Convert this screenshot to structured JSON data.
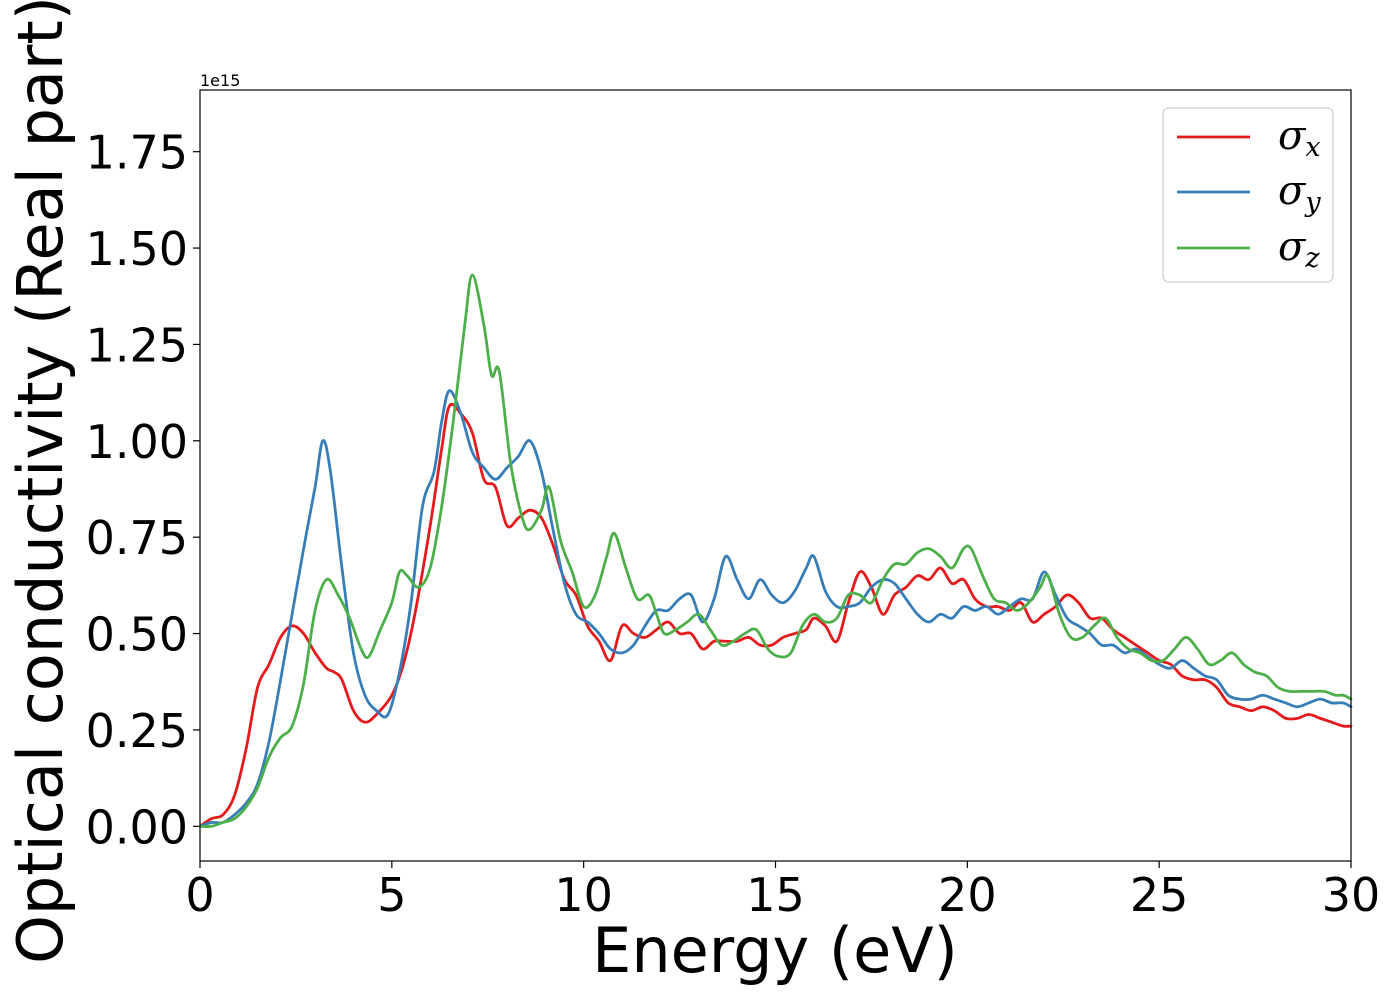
{
  "chart_data": {
    "type": "line",
    "xlabel": "Energy (eV)",
    "ylabel": "Optical conductivity (Real part)",
    "y_offset_label": "1e15",
    "xlim": [
      0,
      30
    ],
    "ylim": [
      -0.09,
      1.91
    ],
    "xticks": [
      0,
      5,
      10,
      15,
      20,
      25,
      30
    ],
    "xtick_labels": [
      "0",
      "5",
      "10",
      "15",
      "20",
      "25",
      "30"
    ],
    "yticks": [
      0.0,
      0.25,
      0.5,
      0.75,
      1.0,
      1.25,
      1.5,
      1.75
    ],
    "ytick_labels": [
      "0.00",
      "0.25",
      "0.50",
      "0.75",
      "1.00",
      "1.25",
      "1.50",
      "1.75"
    ],
    "grid": false,
    "legend_position": "top-right",
    "series": [
      {
        "name": "σx",
        "name_base": "σ",
        "name_sub": "x",
        "color": "#e41a1c",
        "points": [
          [
            0,
            0
          ],
          [
            0.3,
            0.02
          ],
          [
            0.6,
            0.03
          ],
          [
            0.9,
            0.08
          ],
          [
            1.2,
            0.2
          ],
          [
            1.5,
            0.36
          ],
          [
            1.8,
            0.42
          ],
          [
            2.1,
            0.49
          ],
          [
            2.4,
            0.52
          ],
          [
            2.7,
            0.5
          ],
          [
            3.0,
            0.45
          ],
          [
            3.3,
            0.41
          ],
          [
            3.5,
            0.4
          ],
          [
            3.7,
            0.38
          ],
          [
            4.0,
            0.3
          ],
          [
            4.3,
            0.27
          ],
          [
            4.6,
            0.29
          ],
          [
            5.0,
            0.34
          ],
          [
            5.3,
            0.42
          ],
          [
            5.6,
            0.55
          ],
          [
            6.0,
            0.78
          ],
          [
            6.3,
            0.98
          ],
          [
            6.5,
            1.09
          ],
          [
            6.8,
            1.07
          ],
          [
            7.1,
            1.02
          ],
          [
            7.4,
            0.9
          ],
          [
            7.7,
            0.88
          ],
          [
            8.0,
            0.78
          ],
          [
            8.3,
            0.8
          ],
          [
            8.6,
            0.82
          ],
          [
            8.9,
            0.8
          ],
          [
            9.2,
            0.73
          ],
          [
            9.5,
            0.64
          ],
          [
            9.8,
            0.6
          ],
          [
            10.1,
            0.52
          ],
          [
            10.4,
            0.48
          ],
          [
            10.7,
            0.43
          ],
          [
            11.0,
            0.52
          ],
          [
            11.3,
            0.5
          ],
          [
            11.6,
            0.49
          ],
          [
            11.9,
            0.51
          ],
          [
            12.2,
            0.53
          ],
          [
            12.5,
            0.5
          ],
          [
            12.8,
            0.5
          ],
          [
            13.1,
            0.46
          ],
          [
            13.4,
            0.48
          ],
          [
            13.7,
            0.48
          ],
          [
            14.0,
            0.48
          ],
          [
            14.3,
            0.49
          ],
          [
            14.6,
            0.47
          ],
          [
            14.9,
            0.47
          ],
          [
            15.2,
            0.49
          ],
          [
            15.5,
            0.5
          ],
          [
            15.8,
            0.51
          ],
          [
            16.0,
            0.54
          ],
          [
            16.3,
            0.52
          ],
          [
            16.6,
            0.48
          ],
          [
            16.9,
            0.58
          ],
          [
            17.2,
            0.66
          ],
          [
            17.5,
            0.62
          ],
          [
            17.8,
            0.55
          ],
          [
            18.1,
            0.6
          ],
          [
            18.4,
            0.62
          ],
          [
            18.7,
            0.65
          ],
          [
            19.0,
            0.64
          ],
          [
            19.3,
            0.67
          ],
          [
            19.6,
            0.63
          ],
          [
            19.9,
            0.64
          ],
          [
            20.2,
            0.59
          ],
          [
            20.5,
            0.57
          ],
          [
            20.8,
            0.57
          ],
          [
            21.1,
            0.56
          ],
          [
            21.4,
            0.58
          ],
          [
            21.7,
            0.53
          ],
          [
            22.0,
            0.55
          ],
          [
            22.3,
            0.57
          ],
          [
            22.6,
            0.6
          ],
          [
            22.9,
            0.58
          ],
          [
            23.2,
            0.54
          ],
          [
            23.5,
            0.54
          ],
          [
            23.8,
            0.51
          ],
          [
            24.1,
            0.49
          ],
          [
            24.4,
            0.47
          ],
          [
            24.7,
            0.45
          ],
          [
            25.0,
            0.43
          ],
          [
            25.3,
            0.42
          ],
          [
            25.6,
            0.39
          ],
          [
            25.9,
            0.38
          ],
          [
            26.2,
            0.38
          ],
          [
            26.5,
            0.36
          ],
          [
            26.8,
            0.32
          ],
          [
            27.1,
            0.31
          ],
          [
            27.4,
            0.3
          ],
          [
            27.7,
            0.31
          ],
          [
            28.0,
            0.3
          ],
          [
            28.3,
            0.28
          ],
          [
            28.6,
            0.28
          ],
          [
            28.9,
            0.29
          ],
          [
            29.2,
            0.28
          ],
          [
            29.5,
            0.27
          ],
          [
            29.8,
            0.26
          ],
          [
            30.0,
            0.26
          ]
        ]
      },
      {
        "name": "σy",
        "name_base": "σ",
        "name_sub": "y",
        "color": "#377eb8",
        "points": [
          [
            0,
            0
          ],
          [
            0.3,
            0.01
          ],
          [
            0.6,
            0.01
          ],
          [
            0.9,
            0.03
          ],
          [
            1.2,
            0.06
          ],
          [
            1.5,
            0.11
          ],
          [
            1.8,
            0.22
          ],
          [
            2.1,
            0.38
          ],
          [
            2.4,
            0.55
          ],
          [
            2.7,
            0.72
          ],
          [
            3.0,
            0.88
          ],
          [
            3.2,
            1.0
          ],
          [
            3.4,
            0.92
          ],
          [
            3.7,
            0.67
          ],
          [
            4.0,
            0.45
          ],
          [
            4.3,
            0.34
          ],
          [
            4.6,
            0.3
          ],
          [
            4.9,
            0.29
          ],
          [
            5.2,
            0.4
          ],
          [
            5.5,
            0.58
          ],
          [
            5.8,
            0.83
          ],
          [
            6.1,
            0.92
          ],
          [
            6.3,
            1.05
          ],
          [
            6.5,
            1.13
          ],
          [
            6.8,
            1.07
          ],
          [
            7.1,
            0.97
          ],
          [
            7.4,
            0.93
          ],
          [
            7.7,
            0.9
          ],
          [
            8.0,
            0.93
          ],
          [
            8.3,
            0.96
          ],
          [
            8.6,
            1.0
          ],
          [
            8.9,
            0.92
          ],
          [
            9.2,
            0.77
          ],
          [
            9.5,
            0.63
          ],
          [
            9.8,
            0.55
          ],
          [
            10.1,
            0.53
          ],
          [
            10.4,
            0.5
          ],
          [
            10.7,
            0.46
          ],
          [
            11.0,
            0.45
          ],
          [
            11.3,
            0.47
          ],
          [
            11.6,
            0.52
          ],
          [
            11.9,
            0.56
          ],
          [
            12.2,
            0.56
          ],
          [
            12.5,
            0.59
          ],
          [
            12.8,
            0.6
          ],
          [
            13.1,
            0.53
          ],
          [
            13.4,
            0.59
          ],
          [
            13.7,
            0.7
          ],
          [
            14.0,
            0.64
          ],
          [
            14.3,
            0.59
          ],
          [
            14.6,
            0.64
          ],
          [
            14.9,
            0.6
          ],
          [
            15.2,
            0.58
          ],
          [
            15.5,
            0.61
          ],
          [
            15.8,
            0.67
          ],
          [
            16.0,
            0.7
          ],
          [
            16.3,
            0.61
          ],
          [
            16.6,
            0.57
          ],
          [
            16.9,
            0.57
          ],
          [
            17.2,
            0.58
          ],
          [
            17.5,
            0.62
          ],
          [
            17.8,
            0.64
          ],
          [
            18.1,
            0.63
          ],
          [
            18.4,
            0.59
          ],
          [
            18.7,
            0.55
          ],
          [
            19.0,
            0.53
          ],
          [
            19.3,
            0.55
          ],
          [
            19.6,
            0.54
          ],
          [
            19.9,
            0.57
          ],
          [
            20.2,
            0.56
          ],
          [
            20.5,
            0.57
          ],
          [
            20.8,
            0.55
          ],
          [
            21.1,
            0.57
          ],
          [
            21.4,
            0.59
          ],
          [
            21.7,
            0.59
          ],
          [
            22.0,
            0.66
          ],
          [
            22.3,
            0.6
          ],
          [
            22.6,
            0.54
          ],
          [
            22.9,
            0.52
          ],
          [
            23.2,
            0.5
          ],
          [
            23.5,
            0.47
          ],
          [
            23.8,
            0.47
          ],
          [
            24.1,
            0.45
          ],
          [
            24.4,
            0.46
          ],
          [
            24.7,
            0.44
          ],
          [
            25.0,
            0.42
          ],
          [
            25.3,
            0.41
          ],
          [
            25.6,
            0.43
          ],
          [
            25.9,
            0.41
          ],
          [
            26.2,
            0.39
          ],
          [
            26.5,
            0.38
          ],
          [
            26.8,
            0.34
          ],
          [
            27.1,
            0.33
          ],
          [
            27.4,
            0.33
          ],
          [
            27.7,
            0.34
          ],
          [
            28.0,
            0.33
          ],
          [
            28.3,
            0.32
          ],
          [
            28.6,
            0.31
          ],
          [
            28.9,
            0.32
          ],
          [
            29.2,
            0.33
          ],
          [
            29.5,
            0.32
          ],
          [
            29.8,
            0.32
          ],
          [
            30.0,
            0.31
          ]
        ]
      },
      {
        "name": "σz",
        "name_base": "σ",
        "name_sub": "z",
        "color": "#4daf4a",
        "points": [
          [
            0,
            0
          ],
          [
            0.3,
            0.0
          ],
          [
            0.6,
            0.01
          ],
          [
            0.9,
            0.02
          ],
          [
            1.2,
            0.05
          ],
          [
            1.5,
            0.1
          ],
          [
            1.8,
            0.18
          ],
          [
            2.1,
            0.23
          ],
          [
            2.4,
            0.26
          ],
          [
            2.7,
            0.37
          ],
          [
            3.0,
            0.56
          ],
          [
            3.3,
            0.64
          ],
          [
            3.6,
            0.6
          ],
          [
            3.9,
            0.54
          ],
          [
            4.2,
            0.46
          ],
          [
            4.4,
            0.44
          ],
          [
            4.7,
            0.51
          ],
          [
            5.0,
            0.58
          ],
          [
            5.2,
            0.66
          ],
          [
            5.4,
            0.65
          ],
          [
            5.7,
            0.62
          ],
          [
            6.0,
            0.67
          ],
          [
            6.3,
            0.83
          ],
          [
            6.6,
            1.05
          ],
          [
            6.9,
            1.3
          ],
          [
            7.1,
            1.43
          ],
          [
            7.4,
            1.3
          ],
          [
            7.6,
            1.17
          ],
          [
            7.8,
            1.18
          ],
          [
            8.1,
            0.94
          ],
          [
            8.4,
            0.8
          ],
          [
            8.6,
            0.77
          ],
          [
            8.9,
            0.82
          ],
          [
            9.1,
            0.88
          ],
          [
            9.4,
            0.74
          ],
          [
            9.7,
            0.66
          ],
          [
            10.0,
            0.57
          ],
          [
            10.3,
            0.6
          ],
          [
            10.6,
            0.7
          ],
          [
            10.8,
            0.76
          ],
          [
            11.1,
            0.67
          ],
          [
            11.4,
            0.59
          ],
          [
            11.7,
            0.6
          ],
          [
            11.9,
            0.55
          ],
          [
            12.1,
            0.5
          ],
          [
            12.4,
            0.51
          ],
          [
            12.7,
            0.53
          ],
          [
            13.0,
            0.55
          ],
          [
            13.3,
            0.51
          ],
          [
            13.6,
            0.47
          ],
          [
            13.9,
            0.48
          ],
          [
            14.2,
            0.5
          ],
          [
            14.5,
            0.51
          ],
          [
            14.8,
            0.46
          ],
          [
            15.1,
            0.44
          ],
          [
            15.4,
            0.45
          ],
          [
            15.7,
            0.52
          ],
          [
            16.0,
            0.55
          ],
          [
            16.3,
            0.53
          ],
          [
            16.6,
            0.54
          ],
          [
            16.9,
            0.6
          ],
          [
            17.2,
            0.6
          ],
          [
            17.5,
            0.58
          ],
          [
            17.8,
            0.64
          ],
          [
            18.1,
            0.68
          ],
          [
            18.4,
            0.68
          ],
          [
            18.7,
            0.71
          ],
          [
            19.0,
            0.72
          ],
          [
            19.3,
            0.7
          ],
          [
            19.6,
            0.67
          ],
          [
            19.9,
            0.72
          ],
          [
            20.1,
            0.72
          ],
          [
            20.4,
            0.65
          ],
          [
            20.7,
            0.59
          ],
          [
            21.0,
            0.58
          ],
          [
            21.3,
            0.56
          ],
          [
            21.6,
            0.58
          ],
          [
            21.9,
            0.62
          ],
          [
            22.1,
            0.65
          ],
          [
            22.4,
            0.55
          ],
          [
            22.7,
            0.49
          ],
          [
            23.0,
            0.49
          ],
          [
            23.3,
            0.52
          ],
          [
            23.6,
            0.54
          ],
          [
            23.9,
            0.49
          ],
          [
            24.2,
            0.46
          ],
          [
            24.5,
            0.45
          ],
          [
            24.8,
            0.43
          ],
          [
            25.1,
            0.43
          ],
          [
            25.4,
            0.46
          ],
          [
            25.7,
            0.49
          ],
          [
            26.0,
            0.46
          ],
          [
            26.3,
            0.42
          ],
          [
            26.6,
            0.43
          ],
          [
            26.9,
            0.45
          ],
          [
            27.2,
            0.42
          ],
          [
            27.5,
            0.4
          ],
          [
            27.8,
            0.39
          ],
          [
            28.1,
            0.36
          ],
          [
            28.4,
            0.35
          ],
          [
            28.7,
            0.35
          ],
          [
            29.0,
            0.35
          ],
          [
            29.3,
            0.35
          ],
          [
            29.6,
            0.34
          ],
          [
            29.8,
            0.34
          ],
          [
            30.0,
            0.33
          ]
        ]
      }
    ]
  }
}
